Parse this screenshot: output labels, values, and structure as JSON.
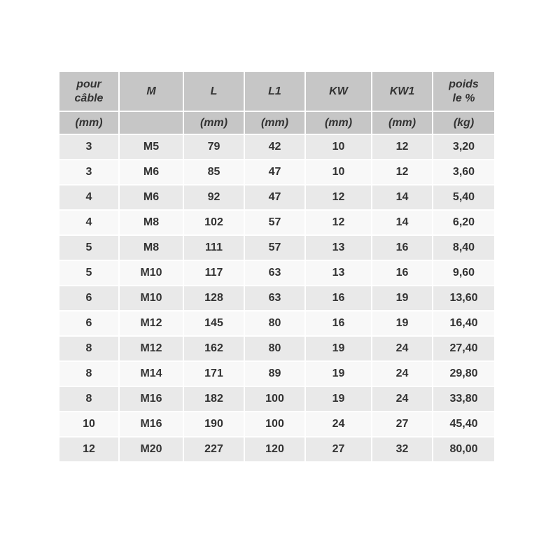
{
  "chart_data": {
    "type": "table",
    "columns": [
      {
        "label": "pour\ncâble",
        "unit": "(mm)"
      },
      {
        "label": "M",
        "unit": ""
      },
      {
        "label": "L",
        "unit": "(mm)"
      },
      {
        "label": "L1",
        "unit": "(mm)"
      },
      {
        "label": "KW",
        "unit": "(mm)"
      },
      {
        "label": "KW1",
        "unit": "(mm)"
      },
      {
        "label": "poids\nle %",
        "unit": "(kg)"
      }
    ],
    "rows": [
      [
        "3",
        "M5",
        "79",
        "42",
        "10",
        "12",
        "3,20"
      ],
      [
        "3",
        "M6",
        "85",
        "47",
        "10",
        "12",
        "3,60"
      ],
      [
        "4",
        "M6",
        "92",
        "47",
        "12",
        "14",
        "5,40"
      ],
      [
        "4",
        "M8",
        "102",
        "57",
        "12",
        "14",
        "6,20"
      ],
      [
        "5",
        "M8",
        "111",
        "57",
        "13",
        "16",
        "8,40"
      ],
      [
        "5",
        "M10",
        "117",
        "63",
        "13",
        "16",
        "9,60"
      ],
      [
        "6",
        "M10",
        "128",
        "63",
        "16",
        "19",
        "13,60"
      ],
      [
        "6",
        "M12",
        "145",
        "80",
        "16",
        "19",
        "16,40"
      ],
      [
        "8",
        "M12",
        "162",
        "80",
        "19",
        "24",
        "27,40"
      ],
      [
        "8",
        "M14",
        "171",
        "89",
        "19",
        "24",
        "29,80"
      ],
      [
        "8",
        "M16",
        "182",
        "100",
        "19",
        "24",
        "33,80"
      ],
      [
        "10",
        "M16",
        "190",
        "100",
        "24",
        "27",
        "45,40"
      ],
      [
        "12",
        "M20",
        "227",
        "120",
        "27",
        "32",
        "80,00"
      ]
    ],
    "colors": {
      "header_bg": "#c6c6c6",
      "row_odd_bg": "#e9e9e9",
      "row_even_bg": "#f8f8f8",
      "text": "#333333",
      "gridline": "#ffffff"
    },
    "layout": {
      "grid": "white 2px gaps between cells",
      "header_rows": 2,
      "data_rows": 13
    }
  }
}
